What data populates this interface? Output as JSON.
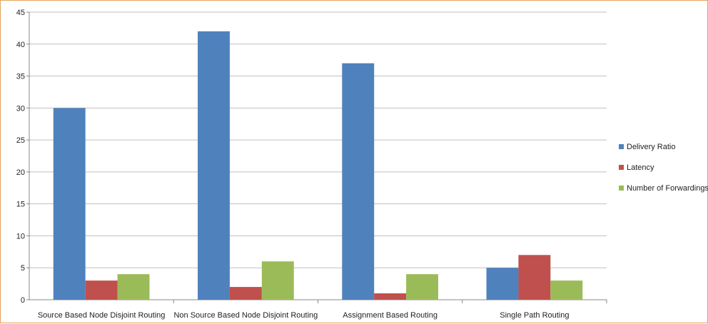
{
  "chart_data": {
    "type": "bar",
    "title": "",
    "xlabel": "",
    "ylabel": "",
    "ylim": [
      0,
      45
    ],
    "yticks": [
      0,
      5,
      10,
      15,
      20,
      25,
      30,
      35,
      40,
      45
    ],
    "grid": true,
    "legend_position": "right",
    "categories": [
      "Source Based Node Disjoint Routing",
      "Non Source Based Node Disjoint Routing",
      "Assignment Based Routing",
      "Single Path Routing"
    ],
    "series": [
      {
        "name": "Delivery Ratio",
        "color": "#4f81bd",
        "values": [
          30,
          42,
          37,
          5
        ]
      },
      {
        "name": "Latency",
        "color": "#c0504d",
        "values": [
          3,
          2,
          1,
          7
        ]
      },
      {
        "name": "Number of Forwardings",
        "color": "#9bbb59",
        "values": [
          4,
          6,
          4,
          3
        ]
      }
    ]
  }
}
